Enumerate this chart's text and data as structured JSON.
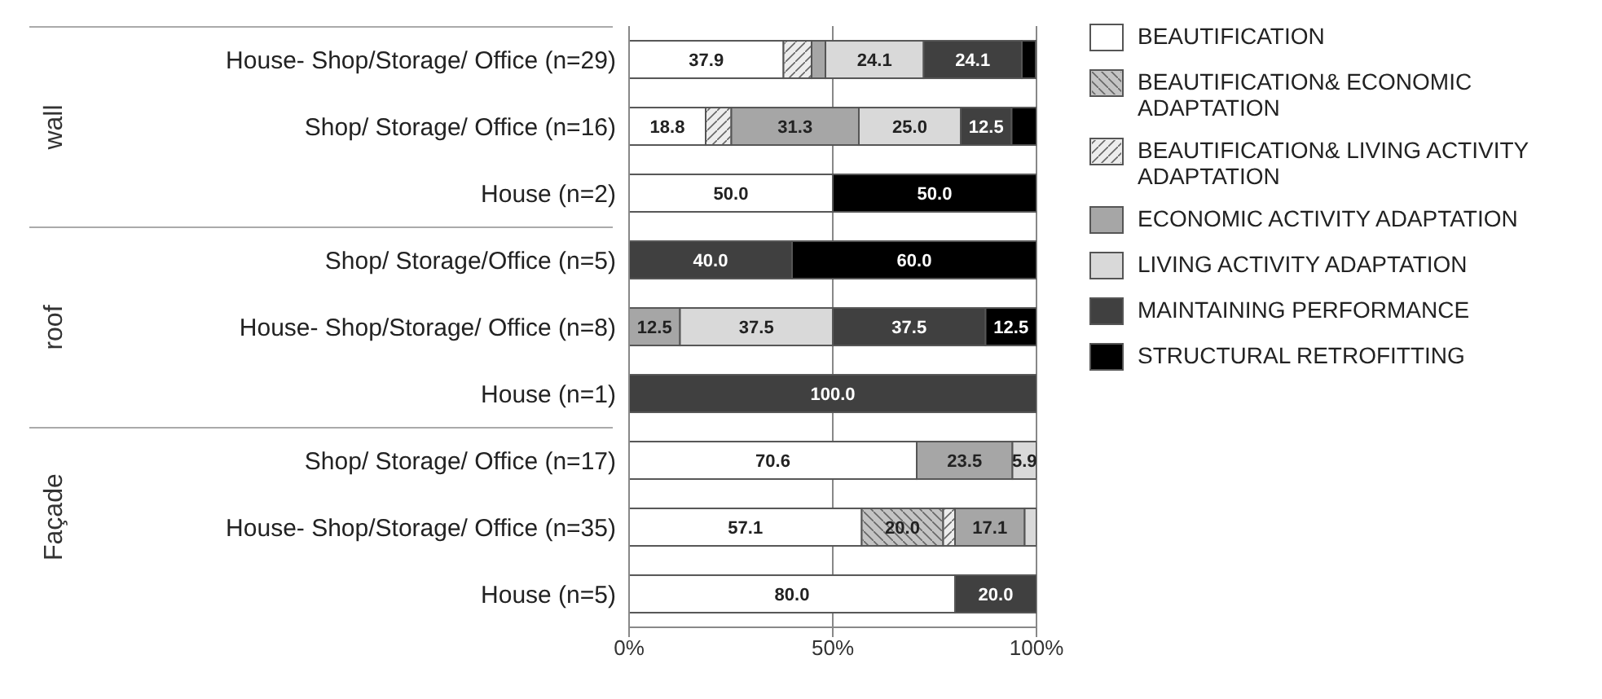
{
  "chart_data": {
    "type": "bar",
    "orientation": "horizontal",
    "stacked": true,
    "grid": "x",
    "legend": "right",
    "categories": [
      "House- Shop/Storage/ Office  (n=29)",
      "Shop/ Storage/ Office (n=16)",
      "House (n=2)",
      "Shop/ Storage/Office (n=5)",
      "House- Shop/Storage/ Office (n=8)",
      "House (n=1)",
      "Shop/ Storage/ Office (n=17)",
      "House- Shop/Storage/ Office (n=35)",
      "House  (n=5)"
    ],
    "annotations": [
      "wall",
      "roof",
      "Façade"
    ],
    "xlim": [
      0,
      100
    ],
    "xticks": [
      {
        "value": 0,
        "label": "0%"
      },
      {
        "value": 50,
        "label": "50%"
      },
      {
        "value": 100,
        "label": "100%"
      }
    ],
    "series": [
      {
        "name": "BEAUTIFICATION",
        "color": "#ffffff",
        "values": [
          37.9,
          18.8,
          50.0,
          null,
          null,
          null,
          70.6,
          57.1,
          80.0
        ],
        "value_labels": [
          "37.9",
          "18.8",
          "50.0",
          null,
          null,
          null,
          "70.6",
          "57.1",
          "80.0"
        ]
      },
      {
        "name": "BEAUTIFICATION& ECONOMIC ADAPTATION",
        "color": "#c4c4c4",
        "values": [
          null,
          null,
          null,
          null,
          null,
          null,
          null,
          20.0,
          null
        ],
        "value_labels": [
          null,
          null,
          null,
          null,
          null,
          null,
          null,
          "20.0",
          null
        ]
      },
      {
        "name": "BEAUTIFICATION& LIVING ACTIVITY ADAPTATION",
        "color": "#ededed",
        "values": [
          6.9,
          6.3,
          null,
          null,
          null,
          null,
          null,
          2.9,
          null
        ],
        "value_labels": [
          null,
          null,
          null,
          null,
          null,
          null,
          null,
          null,
          null
        ]
      },
      {
        "name": "ECONOMIC ACTIVITY ADAPTATION",
        "color": "#a6a6a6",
        "values": [
          3.4,
          31.3,
          null,
          null,
          12.5,
          null,
          23.5,
          17.1,
          null
        ],
        "value_labels": [
          null,
          "31.3",
          null,
          null,
          "12.5",
          null,
          "23.5",
          "17.1",
          null
        ]
      },
      {
        "name": "LIVING ACTIVITY ADAPTATION",
        "color": "#d9d9d9",
        "values": [
          24.1,
          25.0,
          null,
          null,
          37.5,
          null,
          5.9,
          2.9,
          null
        ],
        "value_labels": [
          "24.1",
          "25.0",
          null,
          null,
          "37.5",
          null,
          "5.9",
          null,
          null
        ]
      },
      {
        "name": "MAINTAINING PERFORMANCE",
        "color": "#404040",
        "values": [
          24.1,
          12.5,
          null,
          40.0,
          37.5,
          100.0,
          null,
          null,
          20.0
        ],
        "value_labels": [
          "24.1",
          "12.5",
          null,
          "40.0",
          "37.5",
          "100.0",
          null,
          null,
          "20.0"
        ]
      },
      {
        "name": "STRUCTURAL RETROFITTING",
        "color": "#000000",
        "values": [
          3.4,
          6.3,
          50.0,
          60.0,
          12.5,
          null,
          null,
          null,
          null
        ],
        "value_labels": [
          null,
          null,
          "50.0",
          "60.0",
          "12.5",
          null,
          null,
          null,
          null
        ]
      }
    ]
  }
}
